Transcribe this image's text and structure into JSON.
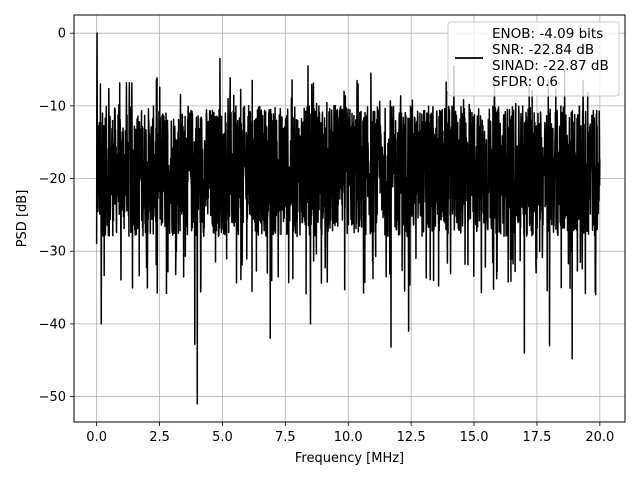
{
  "chart_data": {
    "type": "line",
    "title": "",
    "xlabel": "Frequency [MHz]",
    "ylabel": "PSD [dB]",
    "xlim": [
      -0.9,
      21.0
    ],
    "ylim": [
      -53.5,
      2.5
    ],
    "x_ticks": [
      0.0,
      2.5,
      5.0,
      7.5,
      10.0,
      12.5,
      15.0,
      17.5,
      20.0
    ],
    "x_tick_labels": [
      "0.0",
      "2.5",
      "5.0",
      "7.5",
      "10.0",
      "12.5",
      "15.0",
      "17.5",
      "20.0"
    ],
    "y_ticks": [
      0,
      -10,
      -20,
      -30,
      -40,
      -50
    ],
    "y_tick_labels": [
      "0",
      "−10",
      "−20",
      "−30",
      "−40",
      "−50"
    ],
    "grid": true,
    "legend_position": "top-right",
    "legend_lines": [
      "ENOB: -4.09 bits",
      "SNR: -22.84 dB",
      "SINAD: -22.87 dB",
      "SFDR: 0.6"
    ],
    "series_color": "#000000",
    "series": [
      {
        "x_start": 0.0,
        "x_end": 20.0,
        "baseline_db": -19.0,
        "upper_envelope_db": -10.0,
        "lower_envelope_db": -30.0,
        "peaks": [
          {
            "x": 0.02,
            "y": 0.0
          },
          {
            "x": 0.15,
            "y": -7.0
          },
          {
            "x": 4.9,
            "y": -3.5
          },
          {
            "x": 8.4,
            "y": -4.5
          },
          {
            "x": 10.9,
            "y": -5.5
          },
          {
            "x": 14.2,
            "y": -4.5
          },
          {
            "x": 18.6,
            "y": -5.0
          }
        ],
        "dips": [
          {
            "x": 0.18,
            "y": -40.0
          },
          {
            "x": 3.9,
            "y": -42.8
          },
          {
            "x": 4.0,
            "y": -51.0
          },
          {
            "x": 6.9,
            "y": -42.0
          },
          {
            "x": 8.5,
            "y": -40.0
          },
          {
            "x": 11.7,
            "y": -43.2
          },
          {
            "x": 12.4,
            "y": -41.0
          },
          {
            "x": 17.0,
            "y": -44.0
          },
          {
            "x": 18.0,
            "y": -43.0
          },
          {
            "x": 18.9,
            "y": -44.8
          }
        ]
      }
    ]
  }
}
